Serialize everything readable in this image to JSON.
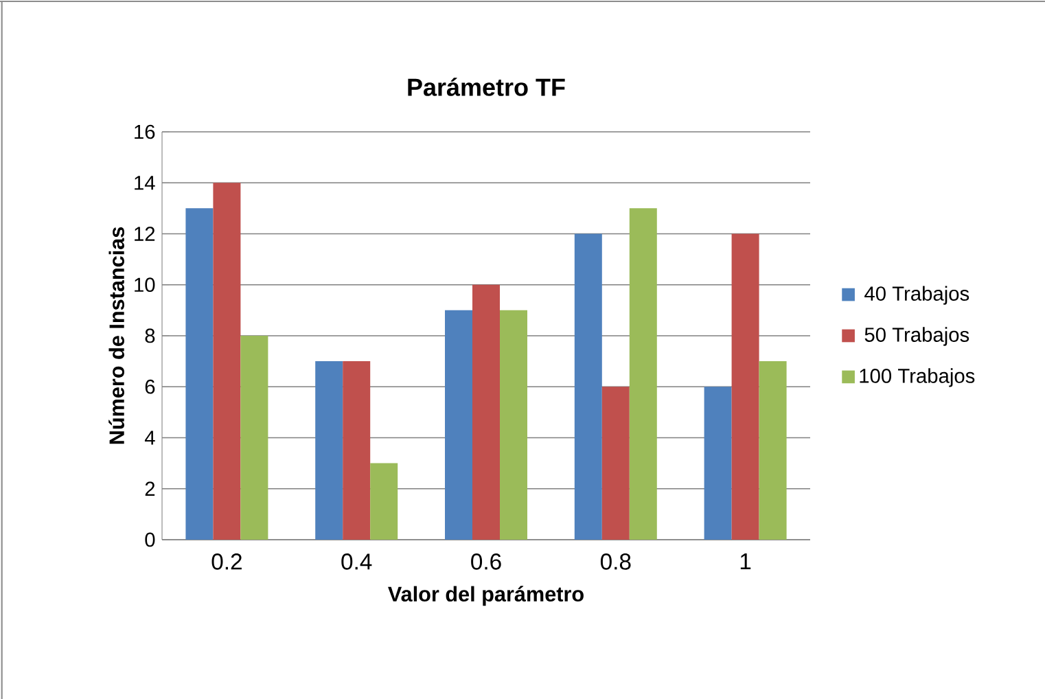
{
  "chart_data": {
    "type": "bar",
    "title": "Parámetro TF",
    "xlabel": "Valor del parámetro",
    "ylabel": "Número de Instancias",
    "categories": [
      "0.2",
      "0.4",
      "0.6",
      "0.8",
      "1"
    ],
    "series": [
      {
        "name": "40 Trabajos",
        "color": "#4f81bd",
        "values": [
          13,
          7,
          9,
          12,
          6
        ]
      },
      {
        "name": "50 Trabajos",
        "color": "#c0504d",
        "values": [
          14,
          7,
          10,
          6,
          12
        ]
      },
      {
        "name": "100 Trabajos",
        "color": "#9bbb59",
        "values": [
          8,
          3,
          9,
          13,
          7
        ]
      }
    ],
    "ylim": [
      0,
      16
    ],
    "yticks": [
      0,
      2,
      4,
      6,
      8,
      10,
      12,
      14,
      16
    ],
    "grid": "y",
    "legend": "right"
  }
}
